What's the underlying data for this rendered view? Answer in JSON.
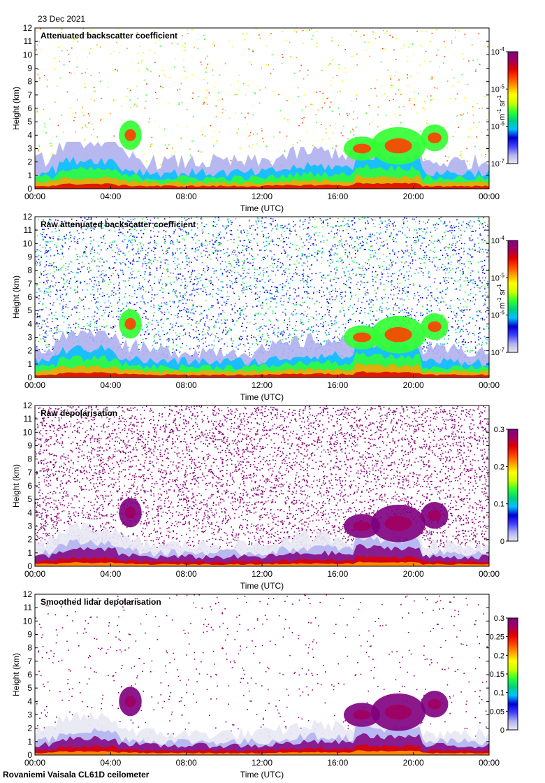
{
  "date": "23 Dec 2021",
  "footer": "Rovaniemi Vaisala CL61D ceilometer",
  "colors": {
    "colormap": [
      "#e8e8f4",
      "#b0b0f0",
      "#4040ff",
      "#0000d0",
      "#00c0ff",
      "#00d080",
      "#30ff30",
      "#c8ff00",
      "#ffff00",
      "#ffa000",
      "#ff4000",
      "#e00000",
      "#a00060",
      "#800080"
    ]
  },
  "chart_data": [
    {
      "type": "heatmap",
      "title": "Attenuated backscatter coefficient",
      "xlabel": "Time (UTC)",
      "ylabel": "Height (km)",
      "x_ticks": [
        "00:00",
        "04:00",
        "08:00",
        "12:00",
        "16:00",
        "20:00",
        "00:00"
      ],
      "y_ticks": [
        "0",
        "1",
        "2",
        "3",
        "4",
        "5",
        "6",
        "7",
        "8",
        "9",
        "10",
        "11",
        "12"
      ],
      "ylim": [
        0,
        12
      ],
      "colorbar": {
        "scale": "log",
        "units": "m-1 sr-1",
        "range": [
          1e-07,
          0.0001
        ],
        "ticks": [
          {
            "base": "10",
            "exp": "-4",
            "v": 0.0001
          },
          {
            "base": "10",
            "exp": "-5",
            "v": 1e-05
          },
          {
            "base": "10",
            "exp": "-6",
            "v": 1e-06
          },
          {
            "base": "10",
            "exp": "-7",
            "v": 1e-07
          }
        ]
      },
      "cbar_label": {
        "m": "m",
        "m_exp": "-1",
        "sr": "sr",
        "sr_exp": "-1"
      },
      "noise": "sparse",
      "grid": false
    },
    {
      "type": "heatmap",
      "title": "Raw attenuated backscatter coefficient",
      "xlabel": "Time (UTC)",
      "ylabel": "Height (km)",
      "x_ticks": [
        "00:00",
        "04:00",
        "08:00",
        "12:00",
        "16:00",
        "20:00",
        "00:00"
      ],
      "y_ticks": [
        "0",
        "1",
        "2",
        "3",
        "4",
        "5",
        "6",
        "7",
        "8",
        "9",
        "10",
        "11",
        "12"
      ],
      "ylim": [
        0,
        12
      ],
      "colorbar": {
        "scale": "log",
        "units": "m-1 sr-1",
        "range": [
          1e-07,
          0.0001
        ],
        "ticks": [
          {
            "base": "10",
            "exp": "-4",
            "v": 0.0001
          },
          {
            "base": "10",
            "exp": "-5",
            "v": 1e-05
          },
          {
            "base": "10",
            "exp": "-6",
            "v": 1e-06
          },
          {
            "base": "10",
            "exp": "-7",
            "v": 1e-07
          }
        ]
      },
      "cbar_label": {
        "m": "m",
        "m_exp": "-1",
        "sr": "sr",
        "sr_exp": "-1"
      },
      "noise": "dense-blue",
      "grid": false
    },
    {
      "type": "heatmap",
      "title": "Raw depolarisation",
      "xlabel": "Time (UTC)",
      "ylabel": "Height (km)",
      "x_ticks": [
        "00:00",
        "04:00",
        "08:00",
        "12:00",
        "16:00",
        "20:00",
        "00:00"
      ],
      "y_ticks": [
        "0",
        "1",
        "2",
        "3",
        "4",
        "5",
        "6",
        "7",
        "8",
        "9",
        "10",
        "11",
        "12"
      ],
      "ylim": [
        0,
        12
      ],
      "colorbar": {
        "scale": "linear",
        "range": [
          0,
          0.3
        ],
        "ticks": [
          {
            "label": "0.3",
            "v": 0.3
          },
          {
            "label": "0.2",
            "v": 0.2
          },
          {
            "label": "0.1",
            "v": 0.1
          },
          {
            "label": "0",
            "v": 0
          }
        ]
      },
      "noise": "dense-purple",
      "grid": false
    },
    {
      "type": "heatmap",
      "title": "Smoothed lidar depolarisation",
      "xlabel": "Time (UTC)",
      "ylabel": "Height (km)",
      "x_ticks": [
        "00:00",
        "04:00",
        "08:00",
        "12:00",
        "16:00",
        "20:00",
        "00:00"
      ],
      "y_ticks": [
        "0",
        "1",
        "2",
        "3",
        "4",
        "5",
        "6",
        "7",
        "8",
        "9",
        "10",
        "11",
        "12"
      ],
      "ylim": [
        0,
        12
      ],
      "colorbar": {
        "scale": "linear",
        "range": [
          0,
          0.3
        ],
        "ticks": [
          {
            "label": "0.3",
            "v": 0.3
          },
          {
            "label": "0.25",
            "v": 0.25
          },
          {
            "label": "0.2",
            "v": 0.2
          },
          {
            "label": "0.15",
            "v": 0.15
          },
          {
            "label": "0.1",
            "v": 0.1
          },
          {
            "label": "0.05",
            "v": 0.05
          },
          {
            "label": "0",
            "v": 0
          }
        ]
      },
      "noise": "sparse-purple",
      "grid": false
    }
  ]
}
